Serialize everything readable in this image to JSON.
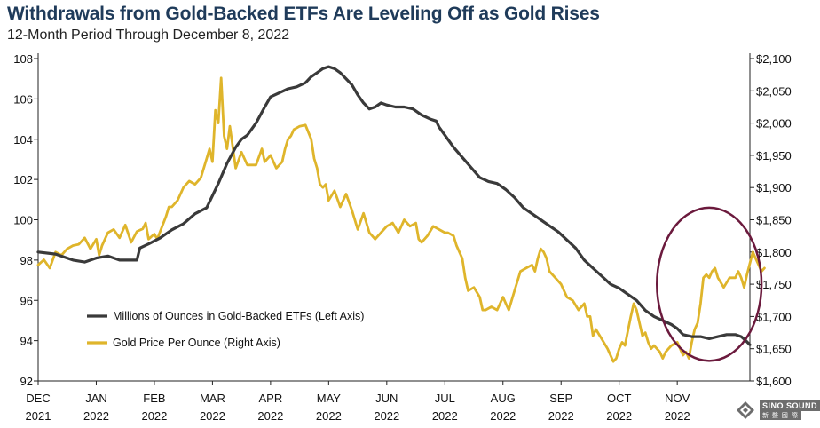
{
  "header": {
    "title": "Withdrawals from Gold-Backed ETFs Are Leveling Off as Gold Rises",
    "subtitle": "12-Month Period Through December 8, 2022"
  },
  "watermark": {
    "brand": "SINO SOUND",
    "sub": "新 聲 國 際"
  },
  "colors": {
    "etf": "#3a3a3a",
    "gold": "#dfb52b",
    "circle": "#6b1a3d",
    "axis": "#222222"
  },
  "chart_data": {
    "type": "line",
    "title": "Withdrawals from Gold-Backed ETFs Are Leveling Off as Gold Rises",
    "subtitle": "12-Month Period Through December 8, 2022",
    "x_labels": [
      {
        "month": "DEC",
        "year": "2021"
      },
      {
        "month": "JAN",
        "year": "2022"
      },
      {
        "month": "FEB",
        "year": "2022"
      },
      {
        "month": "MAR",
        "year": "2022"
      },
      {
        "month": "APR",
        "year": "2022"
      },
      {
        "month": "MAY",
        "year": "2022"
      },
      {
        "month": "JUN",
        "year": "2022"
      },
      {
        "month": "JUL",
        "year": "2022"
      },
      {
        "month": "AUG",
        "year": "2022"
      },
      {
        "month": "SEP",
        "year": "2022"
      },
      {
        "month": "OCT",
        "year": "2022"
      },
      {
        "month": "NOV",
        "year": "2022"
      }
    ],
    "x_range": [
      0,
      12.25
    ],
    "left_axis": {
      "ylim": [
        92,
        108
      ],
      "ticks": [
        "108",
        "106",
        "104",
        "102",
        "100",
        "98",
        "96",
        "94",
        "92"
      ],
      "tick_values": [
        108,
        106,
        104,
        102,
        100,
        98,
        96,
        94,
        92
      ]
    },
    "right_axis": {
      "ylim": [
        1600,
        2100
      ],
      "ticks": [
        "$2,100",
        "$2,050",
        "$2,000",
        "$1,950",
        "$1,900",
        "$1,850",
        "$1,800",
        "$1,750",
        "$1,700",
        "$1,650",
        "$1,600"
      ],
      "tick_values": [
        2100,
        2050,
        2000,
        1950,
        1900,
        1850,
        1800,
        1750,
        1700,
        1650,
        1600
      ]
    },
    "series": [
      {
        "name": "Millions of Ounces in Gold-Backed ETFs (Left Axis)",
        "axis": "left",
        "points": [
          [
            0,
            98.4
          ],
          [
            0.3,
            98.3
          ],
          [
            0.6,
            98.0
          ],
          [
            0.8,
            97.9
          ],
          [
            1.0,
            98.1
          ],
          [
            1.2,
            98.2
          ],
          [
            1.4,
            98.0
          ],
          [
            1.6,
            98.0
          ],
          [
            1.7,
            98.0
          ],
          [
            1.75,
            98.6
          ],
          [
            1.9,
            98.8
          ],
          [
            2.1,
            99.1
          ],
          [
            2.3,
            99.5
          ],
          [
            2.5,
            99.8
          ],
          [
            2.7,
            100.3
          ],
          [
            2.9,
            100.6
          ],
          [
            3.1,
            101.8
          ],
          [
            3.25,
            102.8
          ],
          [
            3.4,
            103.6
          ],
          [
            3.5,
            104.0
          ],
          [
            3.6,
            104.2
          ],
          [
            3.75,
            104.8
          ],
          [
            3.9,
            105.6
          ],
          [
            4.0,
            106.1
          ],
          [
            4.15,
            106.3
          ],
          [
            4.3,
            106.5
          ],
          [
            4.45,
            106.6
          ],
          [
            4.6,
            106.8
          ],
          [
            4.7,
            107.1
          ],
          [
            4.8,
            107.3
          ],
          [
            4.9,
            107.5
          ],
          [
            5.0,
            107.6
          ],
          [
            5.1,
            107.5
          ],
          [
            5.2,
            107.3
          ],
          [
            5.3,
            107.0
          ],
          [
            5.4,
            106.7
          ],
          [
            5.5,
            106.2
          ],
          [
            5.6,
            105.8
          ],
          [
            5.7,
            105.5
          ],
          [
            5.8,
            105.6
          ],
          [
            5.9,
            105.8
          ],
          [
            6.0,
            105.7
          ],
          [
            6.15,
            105.6
          ],
          [
            6.3,
            105.6
          ],
          [
            6.45,
            105.5
          ],
          [
            6.6,
            105.2
          ],
          [
            6.75,
            105.0
          ],
          [
            6.85,
            104.9
          ],
          [
            6.9,
            104.6
          ],
          [
            7.0,
            104.2
          ],
          [
            7.15,
            103.6
          ],
          [
            7.3,
            103.1
          ],
          [
            7.45,
            102.6
          ],
          [
            7.6,
            102.1
          ],
          [
            7.75,
            101.9
          ],
          [
            7.9,
            101.8
          ],
          [
            8.05,
            101.5
          ],
          [
            8.2,
            101.1
          ],
          [
            8.35,
            100.6
          ],
          [
            8.5,
            100.3
          ],
          [
            8.65,
            100.0
          ],
          [
            8.8,
            99.7
          ],
          [
            8.95,
            99.4
          ],
          [
            9.1,
            99.0
          ],
          [
            9.25,
            98.6
          ],
          [
            9.4,
            98.0
          ],
          [
            9.55,
            97.6
          ],
          [
            9.7,
            97.2
          ],
          [
            9.85,
            96.8
          ],
          [
            10.0,
            96.6
          ],
          [
            10.15,
            96.3
          ],
          [
            10.3,
            96.0
          ],
          [
            10.45,
            95.5
          ],
          [
            10.6,
            95.2
          ],
          [
            10.75,
            95.0
          ],
          [
            10.9,
            94.8
          ],
          [
            11.0,
            94.6
          ],
          [
            11.1,
            94.3
          ],
          [
            11.25,
            94.2
          ],
          [
            11.4,
            94.2
          ],
          [
            11.55,
            94.1
          ],
          [
            11.7,
            94.2
          ],
          [
            11.85,
            94.3
          ],
          [
            12.0,
            94.3
          ],
          [
            12.1,
            94.2
          ],
          [
            12.18,
            94.0
          ],
          [
            12.25,
            93.8
          ]
        ]
      },
      {
        "name": "Gold Price Per Ounce (Right Axis)",
        "axis": "right",
        "points": [
          [
            0,
            1780
          ],
          [
            0.1,
            1788
          ],
          [
            0.2,
            1775
          ],
          [
            0.3,
            1800
          ],
          [
            0.4,
            1795
          ],
          [
            0.5,
            1805
          ],
          [
            0.6,
            1810
          ],
          [
            0.7,
            1812
          ],
          [
            0.8,
            1822
          ],
          [
            0.9,
            1805
          ],
          [
            1.0,
            1820
          ],
          [
            1.05,
            1795
          ],
          [
            1.1,
            1810
          ],
          [
            1.2,
            1830
          ],
          [
            1.3,
            1835
          ],
          [
            1.4,
            1822
          ],
          [
            1.5,
            1842
          ],
          [
            1.6,
            1815
          ],
          [
            1.7,
            1832
          ],
          [
            1.8,
            1836
          ],
          [
            1.85,
            1845
          ],
          [
            1.9,
            1820
          ],
          [
            2.0,
            1828
          ],
          [
            2.05,
            1820
          ],
          [
            2.1,
            1832
          ],
          [
            2.2,
            1855
          ],
          [
            2.25,
            1870
          ],
          [
            2.3,
            1870
          ],
          [
            2.4,
            1880
          ],
          [
            2.5,
            1900
          ],
          [
            2.6,
            1910
          ],
          [
            2.7,
            1905
          ],
          [
            2.8,
            1915
          ],
          [
            2.9,
            1945
          ],
          [
            2.95,
            1960
          ],
          [
            3.0,
            1940
          ],
          [
            3.05,
            2020
          ],
          [
            3.1,
            2000
          ],
          [
            3.15,
            2070
          ],
          [
            3.2,
            1980
          ],
          [
            3.25,
            1960
          ],
          [
            3.3,
            1995
          ],
          [
            3.4,
            1930
          ],
          [
            3.5,
            1955
          ],
          [
            3.6,
            1935
          ],
          [
            3.75,
            1935
          ],
          [
            3.85,
            1960
          ],
          [
            3.9,
            1940
          ],
          [
            4.0,
            1950
          ],
          [
            4.1,
            1930
          ],
          [
            4.15,
            1935
          ],
          [
            4.2,
            1940
          ],
          [
            4.25,
            1960
          ],
          [
            4.3,
            1975
          ],
          [
            4.35,
            1980
          ],
          [
            4.4,
            1990
          ],
          [
            4.5,
            1995
          ],
          [
            4.6,
            1997
          ],
          [
            4.7,
            1975
          ],
          [
            4.75,
            1945
          ],
          [
            4.8,
            1930
          ],
          [
            4.85,
            1905
          ],
          [
            4.9,
            1900
          ],
          [
            4.95,
            1905
          ],
          [
            5.0,
            1880
          ],
          [
            5.1,
            1895
          ],
          [
            5.2,
            1870
          ],
          [
            5.3,
            1890
          ],
          [
            5.4,
            1865
          ],
          [
            5.5,
            1835
          ],
          [
            5.6,
            1860
          ],
          [
            5.7,
            1830
          ],
          [
            5.8,
            1820
          ],
          [
            5.9,
            1830
          ],
          [
            6.0,
            1840
          ],
          [
            6.1,
            1845
          ],
          [
            6.2,
            1830
          ],
          [
            6.3,
            1850
          ],
          [
            6.4,
            1840
          ],
          [
            6.5,
            1845
          ],
          [
            6.55,
            1820
          ],
          [
            6.6,
            1815
          ],
          [
            6.7,
            1825
          ],
          [
            6.8,
            1840
          ],
          [
            6.9,
            1835
          ],
          [
            7.0,
            1830
          ],
          [
            7.05,
            1830
          ],
          [
            7.15,
            1825
          ],
          [
            7.2,
            1810
          ],
          [
            7.3,
            1790
          ],
          [
            7.35,
            1760
          ],
          [
            7.4,
            1740
          ],
          [
            7.5,
            1745
          ],
          [
            7.6,
            1730
          ],
          [
            7.65,
            1710
          ],
          [
            7.7,
            1710
          ],
          [
            7.8,
            1715
          ],
          [
            7.9,
            1710
          ],
          [
            8.0,
            1730
          ],
          [
            8.05,
            1720
          ],
          [
            8.1,
            1710
          ],
          [
            8.2,
            1740
          ],
          [
            8.3,
            1770
          ],
          [
            8.4,
            1775
          ],
          [
            8.5,
            1780
          ],
          [
            8.55,
            1770
          ],
          [
            8.6,
            1790
          ],
          [
            8.65,
            1805
          ],
          [
            8.7,
            1800
          ],
          [
            8.75,
            1790
          ],
          [
            8.8,
            1770
          ],
          [
            8.9,
            1760
          ],
          [
            9.0,
            1750
          ],
          [
            9.1,
            1730
          ],
          [
            9.2,
            1725
          ],
          [
            9.3,
            1710
          ],
          [
            9.4,
            1720
          ],
          [
            9.45,
            1700
          ],
          [
            9.5,
            1700
          ],
          [
            9.55,
            1670
          ],
          [
            9.6,
            1680
          ],
          [
            9.7,
            1665
          ],
          [
            9.8,
            1650
          ],
          [
            9.85,
            1640
          ],
          [
            9.9,
            1630
          ],
          [
            9.95,
            1635
          ],
          [
            10.0,
            1650
          ],
          [
            10.05,
            1660
          ],
          [
            10.1,
            1655
          ],
          [
            10.2,
            1700
          ],
          [
            10.25,
            1720
          ],
          [
            10.3,
            1710
          ],
          [
            10.35,
            1690
          ],
          [
            10.4,
            1670
          ],
          [
            10.45,
            1675
          ],
          [
            10.5,
            1660
          ],
          [
            10.55,
            1650
          ],
          [
            10.6,
            1655
          ],
          [
            10.7,
            1645
          ],
          [
            10.75,
            1635
          ],
          [
            10.8,
            1645
          ],
          [
            10.85,
            1650
          ],
          [
            10.9,
            1655
          ],
          [
            11.0,
            1660
          ],
          [
            11.05,
            1650
          ],
          [
            11.1,
            1640
          ],
          [
            11.15,
            1645
          ],
          [
            11.2,
            1635
          ],
          [
            11.25,
            1660
          ],
          [
            11.3,
            1680
          ],
          [
            11.35,
            1690
          ],
          [
            11.4,
            1720
          ],
          [
            11.45,
            1760
          ],
          [
            11.5,
            1765
          ],
          [
            11.55,
            1760
          ],
          [
            11.6,
            1770
          ],
          [
            11.65,
            1775
          ],
          [
            11.7,
            1760
          ],
          [
            11.8,
            1745
          ],
          [
            11.9,
            1760
          ],
          [
            12.0,
            1760
          ],
          [
            12.05,
            1770
          ],
          [
            12.1,
            1760
          ],
          [
            12.15,
            1745
          ],
          [
            12.2,
            1765
          ],
          [
            12.3,
            1800
          ],
          [
            12.35,
            1790
          ],
          [
            12.4,
            1780
          ],
          [
            12.45,
            1770
          ],
          [
            12.5,
            1775
          ]
        ]
      }
    ],
    "legend": {
      "position": "lower-left",
      "entries": [
        "Millions of Ounces in Gold-Backed ETFs (Left Axis)",
        "Gold Price Per Ounce (Right Axis)"
      ]
    },
    "annotation": {
      "type": "ellipse",
      "center_x_month": 11.55,
      "center_left_value": 96.8,
      "span_months": 1.8,
      "span_left_units": 7.6,
      "label": ""
    },
    "grid": false
  }
}
